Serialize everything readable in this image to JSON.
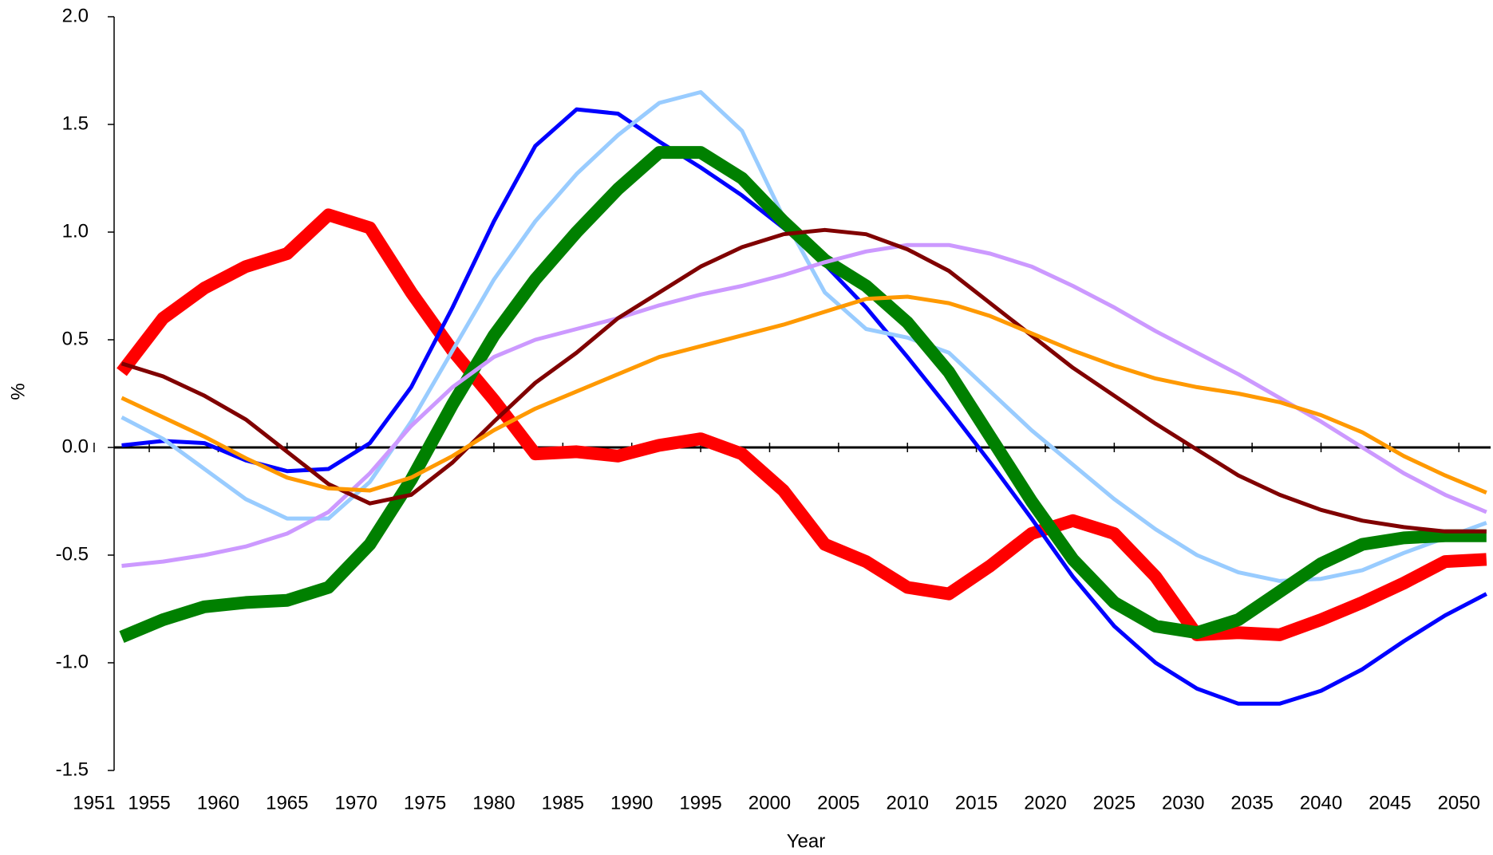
{
  "chart_data": {
    "type": "line",
    "xlabel": "Year",
    "ylabel": "%",
    "x": [
      1953,
      1956,
      1959,
      1962,
      1965,
      1968,
      1971,
      1974,
      1977,
      1980,
      1983,
      1986,
      1989,
      1992,
      1995,
      1998,
      2001,
      2004,
      2007,
      2010,
      2013,
      2016,
      2019,
      2022,
      2025,
      2028,
      2031,
      2034,
      2037,
      2040,
      2043,
      2046,
      2049,
      2052
    ],
    "series": [
      {
        "color": "#ff0000",
        "values": [
          0.35,
          0.6,
          0.74,
          0.84,
          0.9,
          1.08,
          1.02,
          0.72,
          0.45,
          0.22,
          -0.03,
          -0.02,
          -0.04,
          0.01,
          0.04,
          -0.03,
          -0.2,
          -0.45,
          -0.53,
          -0.65,
          -0.68,
          -0.55,
          -0.4,
          -0.34,
          -0.4,
          -0.6,
          -0.87,
          -0.86,
          -0.87,
          -0.8,
          -0.72,
          -0.63,
          -0.53,
          -0.52
        ]
      },
      {
        "color": "#0000ff",
        "values": [
          0.01,
          0.03,
          0.02,
          -0.06,
          -0.11,
          -0.1,
          0.02,
          0.28,
          0.65,
          1.05,
          1.4,
          1.57,
          1.55,
          1.42,
          1.3,
          1.17,
          1.02,
          0.85,
          0.65,
          0.42,
          0.18,
          -0.07,
          -0.33,
          -0.6,
          -0.83,
          -1.0,
          -1.12,
          -1.19,
          -1.19,
          -1.13,
          -1.03,
          -0.9,
          -0.78,
          -0.68
        ]
      },
      {
        "color": "#99ccff",
        "values": [
          0.14,
          0.04,
          -0.1,
          -0.24,
          -0.33,
          -0.33,
          -0.16,
          0.12,
          0.45,
          0.78,
          1.05,
          1.27,
          1.45,
          1.6,
          1.65,
          1.47,
          1.07,
          0.72,
          0.55,
          0.51,
          0.44,
          0.26,
          0.08,
          -0.08,
          -0.24,
          -0.38,
          -0.5,
          -0.58,
          -0.62,
          -0.61,
          -0.57,
          -0.49,
          -0.42,
          -0.35
        ]
      },
      {
        "color": "#008000",
        "values": [
          -0.88,
          -0.8,
          -0.74,
          -0.72,
          -0.71,
          -0.65,
          -0.45,
          -0.15,
          0.2,
          0.52,
          0.78,
          1.0,
          1.2,
          1.37,
          1.37,
          1.25,
          1.05,
          0.87,
          0.75,
          0.58,
          0.35,
          0.05,
          -0.25,
          -0.52,
          -0.72,
          -0.83,
          -0.86,
          -0.8,
          -0.67,
          -0.54,
          -0.45,
          -0.42,
          -0.41,
          -0.41
        ]
      },
      {
        "color": "#cc99ff",
        "values": [
          -0.55,
          -0.53,
          -0.5,
          -0.46,
          -0.4,
          -0.3,
          -0.12,
          0.1,
          0.28,
          0.42,
          0.5,
          0.55,
          0.6,
          0.66,
          0.71,
          0.75,
          0.8,
          0.86,
          0.91,
          0.94,
          0.94,
          0.9,
          0.84,
          0.75,
          0.65,
          0.54,
          0.44,
          0.34,
          0.23,
          0.12,
          0.0,
          -0.12,
          -0.22,
          -0.3
        ]
      },
      {
        "color": "#800000",
        "values": [
          0.39,
          0.33,
          0.24,
          0.13,
          -0.02,
          -0.17,
          -0.26,
          -0.22,
          -0.07,
          0.12,
          0.3,
          0.44,
          0.6,
          0.72,
          0.84,
          0.93,
          0.99,
          1.01,
          0.99,
          0.92,
          0.82,
          0.67,
          0.52,
          0.37,
          0.24,
          0.11,
          -0.01,
          -0.13,
          -0.22,
          -0.29,
          -0.34,
          -0.37,
          -0.39,
          -0.39
        ]
      },
      {
        "color": "#ff9900",
        "values": [
          0.23,
          0.14,
          0.05,
          -0.05,
          -0.14,
          -0.19,
          -0.2,
          -0.14,
          -0.04,
          0.08,
          0.18,
          0.26,
          0.34,
          0.42,
          0.47,
          0.52,
          0.57,
          0.63,
          0.69,
          0.7,
          0.67,
          0.61,
          0.53,
          0.45,
          0.38,
          0.32,
          0.28,
          0.25,
          0.21,
          0.15,
          0.07,
          -0.04,
          -0.13,
          -0.21
        ]
      }
    ],
    "xlim": [
      1952.45,
      2052.3
    ],
    "xticks": [
      1951,
      1955,
      1960,
      1965,
      1970,
      1975,
      1980,
      1985,
      1990,
      1995,
      2000,
      2005,
      2010,
      2015,
      2020,
      2025,
      2030,
      2035,
      2040,
      2045,
      2050
    ],
    "ylim": [
      -1.5,
      2.0
    ],
    "yticks": [
      {
        "value": -1.5,
        "label": "-1.5"
      },
      {
        "value": -1.0,
        "label": "-1.0"
      },
      {
        "value": -0.5,
        "label": "-0.5"
      },
      {
        "value": 0,
        "label": "0.0"
      },
      {
        "value": 0.5,
        "label": "0.5"
      },
      {
        "value": 1.0,
        "label": "1.0"
      },
      {
        "value": 1.5,
        "label": "1.5"
      },
      {
        "value": 2.0,
        "label": "2.0"
      }
    ],
    "grid": false
  }
}
